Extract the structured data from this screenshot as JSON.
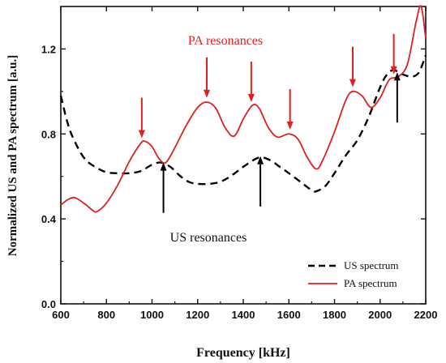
{
  "chart_data": {
    "type": "line",
    "title": "",
    "xlabel": "Frequency [kHz]",
    "ylabel": "Normalized US and PA spectrum [a.u.]",
    "xlim": [
      600,
      2200
    ],
    "ylim": [
      0.0,
      1.4
    ],
    "xticks": [
      600,
      800,
      1000,
      1200,
      1400,
      1600,
      1800,
      2000,
      2200
    ],
    "xtick_labels": [
      "600",
      "800",
      "1000",
      "1200",
      "1400",
      "1600",
      "1800",
      "2000",
      "2200"
    ],
    "yticks": [
      0.0,
      0.4,
      0.8,
      1.2
    ],
    "ytick_labels": [
      "0.0",
      "0.4",
      "0.8",
      "1.2"
    ],
    "grid": false,
    "legend_position": "bottom-right",
    "series": [
      {
        "name": "US spectrum",
        "style": "dashed",
        "color": "#000000",
        "points": [
          [
            600,
            0.98
          ],
          [
            625,
            0.87
          ],
          [
            650,
            0.79
          ],
          [
            700,
            0.69
          ],
          [
            750,
            0.645
          ],
          [
            800,
            0.62
          ],
          [
            850,
            0.615
          ],
          [
            900,
            0.615
          ],
          [
            950,
            0.625
          ],
          [
            1000,
            0.655
          ],
          [
            1040,
            0.665
          ],
          [
            1080,
            0.645
          ],
          [
            1120,
            0.605
          ],
          [
            1160,
            0.575
          ],
          [
            1200,
            0.565
          ],
          [
            1250,
            0.565
          ],
          [
            1300,
            0.575
          ],
          [
            1350,
            0.605
          ],
          [
            1400,
            0.645
          ],
          [
            1450,
            0.68
          ],
          [
            1480,
            0.69
          ],
          [
            1520,
            0.675
          ],
          [
            1560,
            0.645
          ],
          [
            1600,
            0.615
          ],
          [
            1650,
            0.575
          ],
          [
            1700,
            0.535
          ],
          [
            1720,
            0.53
          ],
          [
            1760,
            0.555
          ],
          [
            1800,
            0.615
          ],
          [
            1850,
            0.7
          ],
          [
            1900,
            0.77
          ],
          [
            1950,
            0.88
          ],
          [
            2000,
            1.02
          ],
          [
            2030,
            1.08
          ],
          [
            2060,
            1.1
          ],
          [
            2100,
            1.08
          ],
          [
            2140,
            1.07
          ],
          [
            2170,
            1.09
          ],
          [
            2200,
            1.17
          ]
        ]
      },
      {
        "name": "PA spectrum",
        "style": "solid",
        "color": "#e02020",
        "points": [
          [
            600,
            0.465
          ],
          [
            630,
            0.49
          ],
          [
            660,
            0.5
          ],
          [
            700,
            0.475
          ],
          [
            740,
            0.44
          ],
          [
            760,
            0.435
          ],
          [
            800,
            0.475
          ],
          [
            850,
            0.56
          ],
          [
            900,
            0.67
          ],
          [
            950,
            0.755
          ],
          [
            970,
            0.765
          ],
          [
            1000,
            0.74
          ],
          [
            1030,
            0.685
          ],
          [
            1060,
            0.665
          ],
          [
            1100,
            0.735
          ],
          [
            1150,
            0.84
          ],
          [
            1200,
            0.925
          ],
          [
            1240,
            0.95
          ],
          [
            1280,
            0.92
          ],
          [
            1320,
            0.83
          ],
          [
            1360,
            0.79
          ],
          [
            1400,
            0.87
          ],
          [
            1440,
            0.935
          ],
          [
            1470,
            0.92
          ],
          [
            1510,
            0.83
          ],
          [
            1550,
            0.785
          ],
          [
            1600,
            0.8
          ],
          [
            1640,
            0.775
          ],
          [
            1680,
            0.69
          ],
          [
            1720,
            0.635
          ],
          [
            1750,
            0.68
          ],
          [
            1800,
            0.81
          ],
          [
            1850,
            0.96
          ],
          [
            1880,
            1.0
          ],
          [
            1920,
            0.98
          ],
          [
            1960,
            0.925
          ],
          [
            2000,
            0.97
          ],
          [
            2040,
            1.055
          ],
          [
            2080,
            1.07
          ],
          [
            2120,
            1.13
          ],
          [
            2160,
            1.34
          ],
          [
            2180,
            1.4
          ],
          [
            2200,
            1.25
          ]
        ]
      }
    ],
    "annotations": [
      {
        "text": "PA resonances",
        "color": "#e02020",
        "arrows": [
          [
            955,
            0.78
          ],
          [
            1240,
            0.97
          ],
          [
            1435,
            0.95
          ],
          [
            1605,
            0.82
          ],
          [
            1880,
            1.02
          ],
          [
            2060,
            1.08
          ]
        ]
      },
      {
        "text": "US resonances",
        "color": "#000000",
        "arrows": [
          [
            1050,
            0.665
          ],
          [
            1475,
            0.695
          ],
          [
            2075,
            1.09
          ]
        ]
      }
    ]
  }
}
